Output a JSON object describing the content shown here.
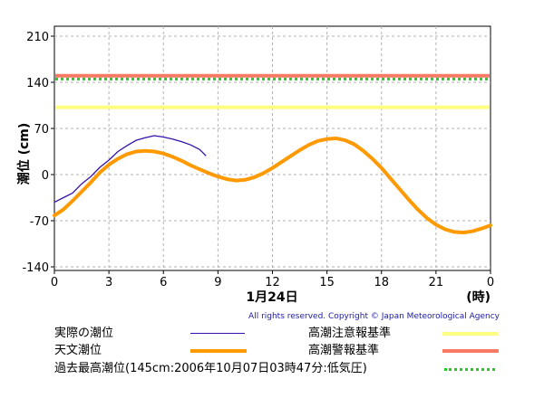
{
  "chart_data": {
    "type": "line",
    "ylabel": "潮位 (cm)",
    "xlabel": "1月24日",
    "x_unit_label": "(時)",
    "x_ticks": [
      "0",
      "3",
      "6",
      "9",
      "12",
      "15",
      "18",
      "21",
      "0"
    ],
    "y_ticks": [
      210,
      140,
      70,
      0,
      -70,
      -140
    ],
    "xlim": [
      0,
      24
    ],
    "ylim": [
      -145,
      220
    ],
    "grid": true,
    "thresholds": [
      {
        "name": "高潮警報基準",
        "value": 150,
        "color": "#f87a64"
      },
      {
        "name": "過去最高潮位(145cm:2006年10月07日03時47分:低気圧)",
        "value": 145,
        "color": "#22cc22",
        "style": "dotted"
      },
      {
        "name": "高潮注意報基準",
        "value": 102,
        "color": "#ffff80"
      }
    ],
    "series": [
      {
        "name": "実際の潮位",
        "color": "#3311aa",
        "x": [
          0,
          0.5,
          1,
          1.5,
          2,
          2.5,
          3,
          3.5,
          4,
          4.5,
          5,
          5.5,
          6,
          6.5,
          7,
          7.5,
          8,
          8.33
        ],
        "y": [
          -42,
          -35,
          -28,
          -14,
          -3,
          11,
          22,
          35,
          44,
          52,
          56,
          59,
          57,
          54,
          50,
          45,
          38,
          29
        ]
      },
      {
        "name": "天文潮位",
        "color": "#ff9900",
        "x": [
          0,
          0.5,
          1,
          1.5,
          2,
          2.5,
          3,
          3.5,
          4,
          4.5,
          5,
          5.5,
          6,
          6.5,
          7,
          7.5,
          8,
          8.5,
          9,
          9.5,
          10,
          10.5,
          11,
          11.5,
          12,
          12.5,
          13,
          13.5,
          14,
          14.5,
          15,
          15.5,
          16,
          16.5,
          17,
          17.5,
          18,
          18.5,
          19,
          19.5,
          20,
          20.5,
          21,
          21.5,
          22,
          22.5,
          23,
          23.5,
          24
        ],
        "y": [
          -62,
          -53,
          -40,
          -26,
          -12,
          3,
          15,
          24,
          31,
          35,
          36,
          35,
          32,
          27,
          21,
          14,
          8,
          2,
          -3,
          -7,
          -9,
          -8,
          -4,
          2,
          10,
          19,
          28,
          37,
          45,
          51,
          54,
          55,
          52,
          46,
          36,
          24,
          10,
          -6,
          -22,
          -38,
          -53,
          -66,
          -76,
          -83,
          -87,
          -88,
          -86,
          -82,
          -77
        ]
      }
    ]
  },
  "copyright": "All rights reserved. Copyright © Japan Meteorological Agency",
  "legend": [
    {
      "label": "実際の潮位",
      "color": "#3311aa",
      "style": "thin"
    },
    {
      "label": "高潮注意報基準",
      "color": "#ffff80",
      "style": "thick"
    },
    {
      "label": "天文潮位",
      "color": "#ff9900",
      "style": "thick"
    },
    {
      "label": "高潮警報基準",
      "color": "#f87a64",
      "style": "thick"
    },
    {
      "label": "過去最高潮位(145cm:2006年10月07日03時47分:低気圧)",
      "color": "#22cc22",
      "style": "dotted"
    }
  ]
}
